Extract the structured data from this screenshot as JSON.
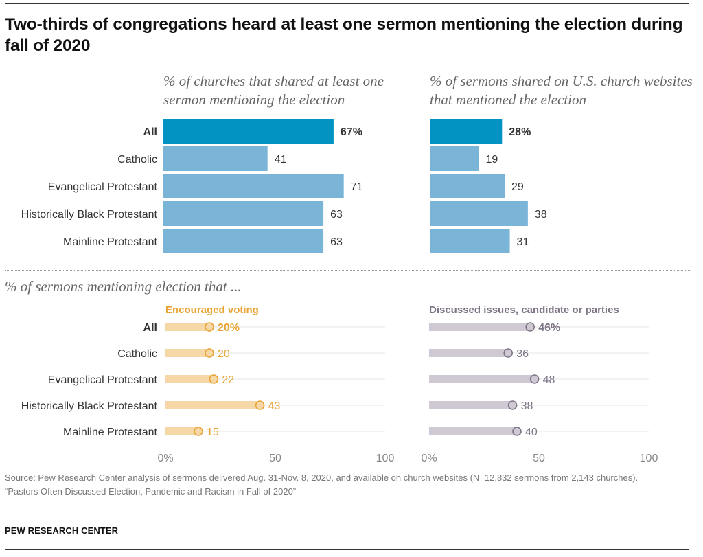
{
  "title": "Two-thirds of congregations heard at least one sermon mentioning the election during fall of 2020",
  "subheads": {
    "left": "% of churches that shared at least one sermon mentioning the election",
    "right": "% of sermons shared on U.S. church websites that mentioned the election",
    "bottom": "% of sermons mentioning election that ..."
  },
  "colors": {
    "bar_highlight": "#0293c2",
    "bar": "#7ab5d8",
    "voting": "#e8a535",
    "voting_light": "#f5d7a8",
    "issues": "#7d7586",
    "issues_light": "#cfc9d4"
  },
  "source": [
    "Source: Pew Research Center analysis of sermons delivered Aug. 31-Nov. 8, 2020, and available on church websites (N=12,832 sermons from 2,143 churches).",
    "“Pastors Often Discussed Election, Pandemic and Racism in Fall of 2020”"
  ],
  "brand": "PEW RESEARCH CENTER",
  "chart_data": [
    {
      "type": "bar",
      "orientation": "horizontal",
      "title": "% of churches that shared at least one sermon mentioning the election",
      "categories": [
        "All",
        "Catholic",
        "Evangelical Protestant",
        "Historically Black Protestant",
        "Mainline Protestant"
      ],
      "values": [
        67,
        41,
        71,
        63,
        63
      ],
      "labels": [
        "67%",
        "41",
        "71",
        "63",
        "63"
      ],
      "highlight_index": 0
    },
    {
      "type": "bar",
      "orientation": "horizontal",
      "title": "% of sermons shared on U.S. church websites that mentioned the election",
      "categories": [
        "All",
        "Catholic",
        "Evangelical Protestant",
        "Historically Black Protestant",
        "Mainline Protestant"
      ],
      "values": [
        28,
        19,
        29,
        38,
        31
      ],
      "labels": [
        "28%",
        "19",
        "29",
        "38",
        "31"
      ],
      "highlight_index": 0
    },
    {
      "type": "scatter",
      "title": "% of sermons mentioning election that ...",
      "categories": [
        "All",
        "Catholic",
        "Evangelical Protestant",
        "Historically Black Protestant",
        "Mainline Protestant"
      ],
      "xlim": [
        0,
        100
      ],
      "xticks": [
        "0%",
        "50",
        "100"
      ],
      "series": [
        {
          "name": "Encouraged voting",
          "values": [
            20,
            20,
            22,
            43,
            15
          ],
          "labels": [
            "20%",
            "20",
            "22",
            "43",
            "15"
          ]
        },
        {
          "name": "Discussed issues, candidate or parties",
          "values": [
            46,
            36,
            48,
            38,
            40
          ],
          "labels": [
            "46%",
            "36",
            "48",
            "38",
            "40"
          ]
        }
      ]
    }
  ]
}
